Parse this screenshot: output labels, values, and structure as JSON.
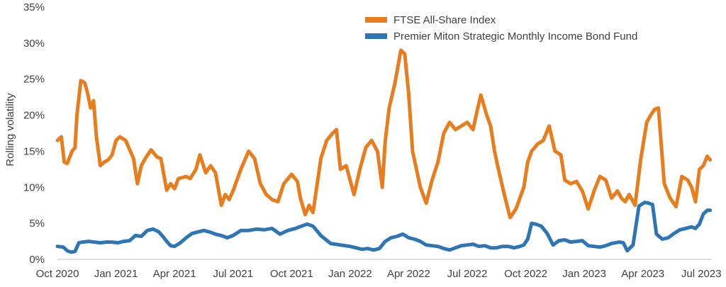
{
  "chart_data": {
    "type": "line",
    "title": "",
    "xlabel": "",
    "ylabel": "Rolling volatility",
    "ylim": [
      0,
      35
    ],
    "yticks": [
      0,
      5,
      10,
      15,
      20,
      25,
      30,
      35
    ],
    "ytick_labels": [
      "0%",
      "5%",
      "10%",
      "15%",
      "20%",
      "25%",
      "30%",
      "35%"
    ],
    "xlim": [
      0,
      33.5
    ],
    "xticks": [
      0,
      3,
      6,
      9,
      12,
      15,
      18,
      21,
      24,
      27,
      30,
      33
    ],
    "xtick_labels": [
      "Oct 2020",
      "Jan 2021",
      "Apr 2021",
      "Jul 2021",
      "Oct 2021",
      "Jan 2022",
      "Apr 2022",
      "Jul 2022",
      "Oct 2022",
      "Jan 2023",
      "Apr 2023",
      "Jul 2023"
    ],
    "grid": false,
    "legend_position": "top-right",
    "series": [
      {
        "name": "FTSE All-Share Index",
        "color": "#E87D1E",
        "x": [
          0,
          0.2,
          0.35,
          0.5,
          0.75,
          0.9,
          1.0,
          1.2,
          1.4,
          1.55,
          1.7,
          1.85,
          2.0,
          2.2,
          2.4,
          2.6,
          2.8,
          3.0,
          3.2,
          3.5,
          3.9,
          4.1,
          4.3,
          4.5,
          4.8,
          5.1,
          5.3,
          5.6,
          5.8,
          6.0,
          6.2,
          6.6,
          6.8,
          7.1,
          7.3,
          7.6,
          7.85,
          8.1,
          8.4,
          8.6,
          8.8,
          9.0,
          9.4,
          9.8,
          10.1,
          10.4,
          10.7,
          11.0,
          11.3,
          11.6,
          12.0,
          12.3,
          12.45,
          12.7,
          12.9,
          13.1,
          13.5,
          13.8,
          14.1,
          14.3,
          14.5,
          14.8,
          15.2,
          15.5,
          15.8,
          16.1,
          16.4,
          16.65,
          16.8,
          17.0,
          17.3,
          17.6,
          17.8,
          18.0,
          18.2,
          18.6,
          18.9,
          19.2,
          19.5,
          19.8,
          20.1,
          20.4,
          20.7,
          21.0,
          21.3,
          21.5,
          21.7,
          22.0,
          22.2,
          22.4,
          22.6,
          22.9,
          23.2,
          23.5,
          23.7,
          23.9,
          24.1,
          24.3,
          24.6,
          24.9,
          25.2,
          25.5,
          25.8,
          26.0,
          26.3,
          26.6,
          26.9,
          27.2,
          27.5,
          27.8,
          28.1,
          28.4,
          28.7,
          28.9,
          29.1,
          29.3,
          29.6,
          29.9,
          30.2,
          30.4,
          30.6,
          30.8,
          31.1,
          31.4,
          31.7,
          32.0,
          32.3,
          32.5,
          32.7,
          32.9,
          33.1,
          33.3,
          33.45
        ],
        "values": [
          16.5,
          17.0,
          13.5,
          13.3,
          15.0,
          15.5,
          20.0,
          24.8,
          24.5,
          23.0,
          21.0,
          22.0,
          17.0,
          13.0,
          13.5,
          13.8,
          14.5,
          16.5,
          17.0,
          16.5,
          14.0,
          10.5,
          13.0,
          14.0,
          15.2,
          14.2,
          14.0,
          9.6,
          10.5,
          9.8,
          11.2,
          11.5,
          11.2,
          12.5,
          14.5,
          12.0,
          13.0,
          12.0,
          7.5,
          9.0,
          8.3,
          9.5,
          12.5,
          15.0,
          14.0,
          10.5,
          9.0,
          8.3,
          8.0,
          10.5,
          11.8,
          10.8,
          8.5,
          6.2,
          7.5,
          6.5,
          14.0,
          16.5,
          17.5,
          18.0,
          12.5,
          13.0,
          9.0,
          12.5,
          15.5,
          16.5,
          15.0,
          10.0,
          16.5,
          21.0,
          24.5,
          29.0,
          28.5,
          23.0,
          15.0,
          10.0,
          7.8,
          11.0,
          13.5,
          17.5,
          19.0,
          18.0,
          18.5,
          19.0,
          18.0,
          20.5,
          22.8,
          20.0,
          18.5,
          15.0,
          12.5,
          9.0,
          5.8,
          7.0,
          8.5,
          10.0,
          13.5,
          15.0,
          16.0,
          16.5,
          18.5,
          15.0,
          14.5,
          11.0,
          10.5,
          10.8,
          9.5,
          7.0,
          9.5,
          11.5,
          11.0,
          8.5,
          9.5,
          8.5,
          8.0,
          9.0,
          7.5,
          14.0,
          19.0,
          20.0,
          20.8,
          21.0,
          10.5,
          8.5,
          7.3,
          11.5,
          11.0,
          10.0,
          8.0,
          12.5,
          13.0,
          14.3,
          13.8
        ],
        "line_width": 5
      },
      {
        "name": "Premier Miton Strategic Monthly Income Bond Fund",
        "color": "#2E75B6",
        "x": [
          0,
          0.3,
          0.5,
          0.7,
          0.9,
          1.1,
          1.3,
          1.6,
          1.9,
          2.2,
          2.5,
          2.8,
          3.1,
          3.4,
          3.7,
          4.0,
          4.3,
          4.6,
          4.9,
          5.2,
          5.4,
          5.6,
          5.8,
          6.0,
          6.3,
          6.6,
          6.9,
          7.2,
          7.5,
          7.8,
          8.1,
          8.4,
          8.7,
          9.0,
          9.4,
          9.8,
          10.2,
          10.6,
          11.0,
          11.4,
          11.8,
          12.2,
          12.5,
          12.8,
          13.1,
          13.5,
          14.0,
          14.5,
          15.0,
          15.3,
          15.6,
          15.9,
          16.2,
          16.5,
          16.8,
          17.1,
          17.4,
          17.7,
          18.0,
          18.3,
          18.6,
          18.9,
          19.2,
          19.5,
          19.8,
          20.1,
          20.4,
          20.7,
          21.0,
          21.3,
          21.6,
          21.9,
          22.2,
          22.5,
          22.8,
          23.1,
          23.4,
          23.7,
          23.9,
          24.1,
          24.3,
          24.5,
          24.8,
          25.1,
          25.4,
          25.7,
          26.0,
          26.3,
          26.6,
          26.9,
          27.2,
          27.5,
          27.8,
          28.1,
          28.4,
          28.6,
          28.8,
          29.0,
          29.2,
          29.5,
          29.8,
          30.1,
          30.3,
          30.5,
          30.7,
          31.0,
          31.3,
          31.6,
          31.9,
          32.2,
          32.5,
          32.7,
          32.9,
          33.1,
          33.3,
          33.45
        ],
        "values": [
          1.8,
          1.7,
          1.2,
          1.0,
          1.1,
          2.3,
          2.4,
          2.5,
          2.4,
          2.3,
          2.4,
          2.4,
          2.3,
          2.5,
          2.6,
          3.3,
          3.2,
          4.0,
          4.2,
          3.8,
          3.2,
          2.5,
          1.9,
          1.8,
          2.3,
          3.0,
          3.6,
          3.8,
          4.0,
          3.8,
          3.5,
          3.3,
          3.0,
          3.3,
          4.0,
          4.0,
          4.2,
          4.1,
          4.3,
          3.5,
          4.0,
          4.3,
          4.6,
          4.9,
          4.6,
          3.3,
          2.2,
          2.0,
          1.8,
          1.6,
          1.4,
          1.5,
          1.3,
          1.5,
          2.5,
          3.0,
          3.2,
          3.5,
          3.0,
          2.8,
          2.5,
          2.0,
          1.9,
          1.8,
          1.5,
          1.3,
          1.6,
          1.9,
          2.0,
          2.1,
          1.8,
          1.9,
          1.6,
          1.6,
          1.8,
          1.8,
          1.6,
          1.8,
          2.0,
          2.8,
          5.0,
          4.9,
          4.6,
          3.6,
          2.0,
          2.6,
          2.7,
          2.4,
          2.5,
          2.6,
          1.9,
          1.8,
          1.7,
          1.9,
          2.2,
          2.3,
          2.4,
          2.3,
          1.2,
          2.0,
          7.4,
          7.9,
          7.8,
          7.6,
          3.5,
          2.8,
          3.0,
          3.6,
          4.1,
          4.3,
          4.5,
          4.3,
          4.9,
          6.3,
          6.8,
          6.8
        ],
        "line_width": 5
      }
    ]
  }
}
